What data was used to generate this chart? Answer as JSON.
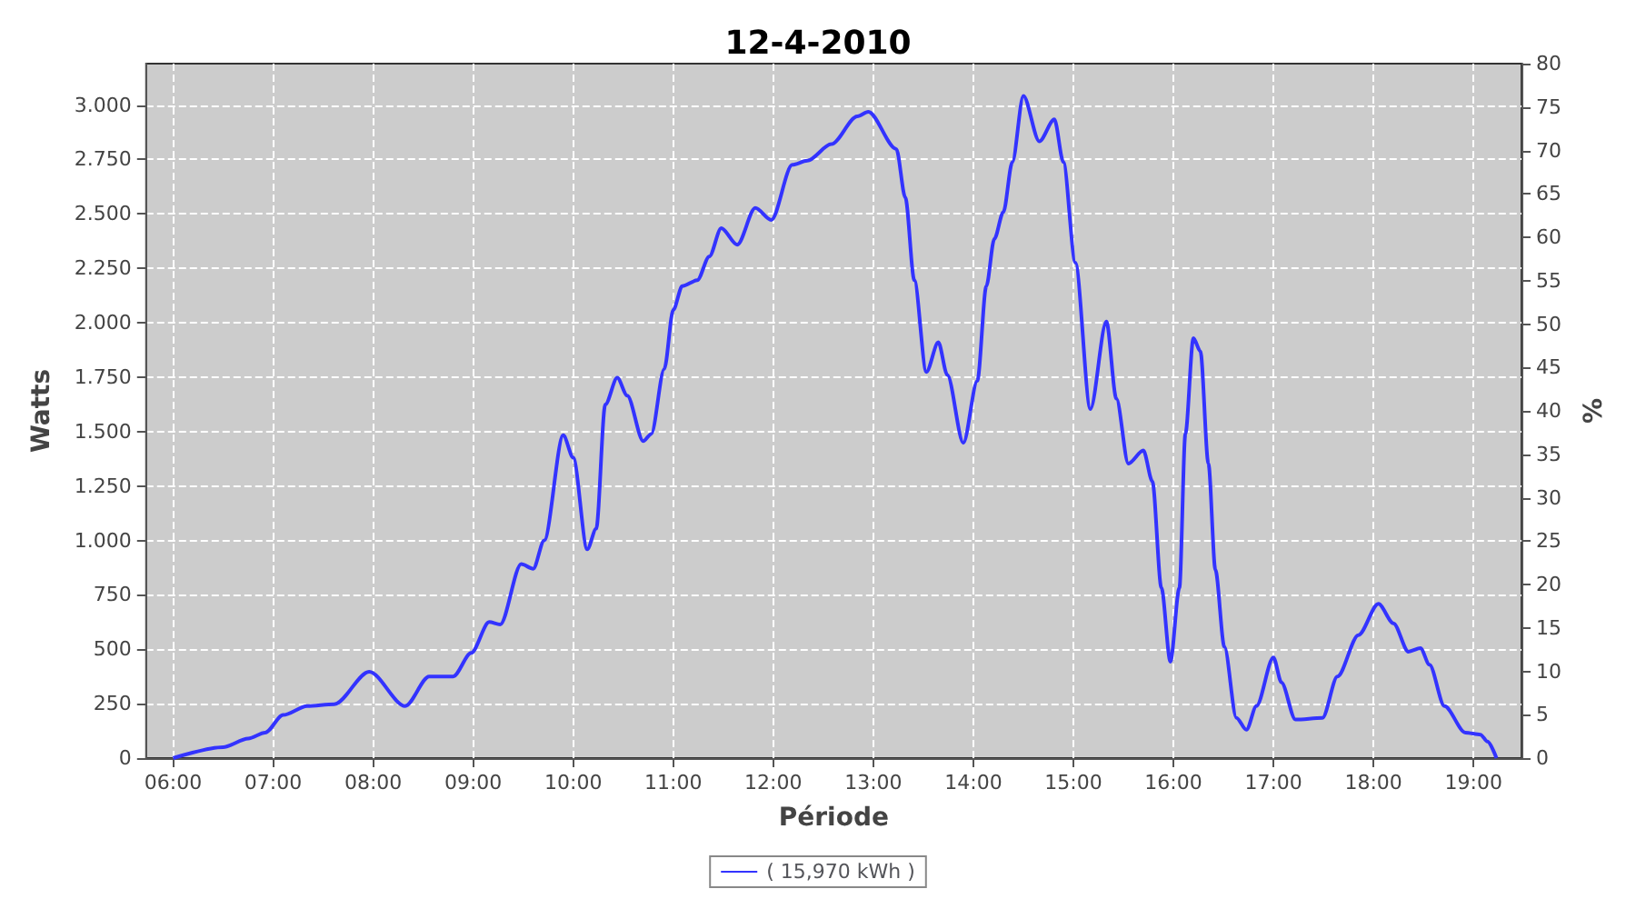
{
  "chart_data": {
    "type": "line",
    "title": "12-4-2010",
    "xlabel": "Période",
    "ylabel": "Watts",
    "y2label": "%",
    "x": [
      6.0,
      6.5,
      6.75,
      6.92,
      7.1,
      7.34,
      7.61,
      7.96,
      8.32,
      8.56,
      8.8,
      8.98,
      9.16,
      9.27,
      9.48,
      9.6,
      9.71,
      9.9,
      10.0,
      10.14,
      10.23,
      10.32,
      10.44,
      10.54,
      10.7,
      10.78,
      10.91,
      11.0,
      11.09,
      11.24,
      11.36,
      11.48,
      11.64,
      11.82,
      11.98,
      12.19,
      12.34,
      12.58,
      12.84,
      12.95,
      13.23,
      13.32,
      13.41,
      13.53,
      13.65,
      13.74,
      13.9,
      14.04,
      14.13,
      14.21,
      14.3,
      14.39,
      14.5,
      14.66,
      14.81,
      14.9,
      15.02,
      15.17,
      15.33,
      15.43,
      15.55,
      15.7,
      15.79,
      15.88,
      15.97,
      16.06,
      16.12,
      16.2,
      16.27,
      16.35,
      16.42,
      16.51,
      16.63,
      16.73,
      16.83,
      17.0,
      17.08,
      17.22,
      17.49,
      17.64,
      17.85,
      18.05,
      18.2,
      18.35,
      18.47,
      18.56,
      18.71,
      18.92,
      19.07,
      19.14,
      19.23
    ],
    "series": [
      {
        "name": "( 15,970 kWh )",
        "color": "#3333ff",
        "values": [
          0,
          50,
          90,
          117,
          198,
          239,
          247,
          397,
          239,
          375,
          375,
          483,
          625,
          614,
          891,
          870,
          1000,
          1483,
          1380,
          959,
          1054,
          1624,
          1747,
          1665,
          1456,
          1489,
          1787,
          2059,
          2168,
          2195,
          2304,
          2434,
          2358,
          2527,
          2472,
          2725,
          2744,
          2820,
          2948,
          2969,
          2798,
          2575,
          2195,
          1774,
          1910,
          1760,
          1448,
          1733,
          2168,
          2385,
          2508,
          2738,
          3042,
          2833,
          2934,
          2738,
          2276,
          1603,
          2005,
          1651,
          1353,
          1413,
          1271,
          782,
          443,
          782,
          1489,
          1929,
          1869,
          1353,
          864,
          511,
          185,
          130,
          239,
          462,
          348,
          177,
          185,
          375,
          565,
          709,
          619,
          489,
          505,
          429,
          239,
          117,
          108,
          76,
          0
        ]
      }
    ],
    "xlim": [
      5.73,
      19.48
    ],
    "xticks": [
      {
        "value": 6,
        "label": "06:00"
      },
      {
        "value": 7,
        "label": "07:00"
      },
      {
        "value": 8,
        "label": "08:00"
      },
      {
        "value": 9,
        "label": "09:00"
      },
      {
        "value": 10,
        "label": "10:00"
      },
      {
        "value": 11,
        "label": "11:00"
      },
      {
        "value": 12,
        "label": "12:00"
      },
      {
        "value": 13,
        "label": "13:00"
      },
      {
        "value": 14,
        "label": "14:00"
      },
      {
        "value": 15,
        "label": "15:00"
      },
      {
        "value": 16,
        "label": "16:00"
      },
      {
        "value": 17,
        "label": "17:00"
      },
      {
        "value": 18,
        "label": "18:00"
      },
      {
        "value": 19,
        "label": "19:00"
      }
    ],
    "ylim": [
      0,
      3190
    ],
    "yticks": [
      0,
      250,
      500,
      750,
      {
        "value": 1000,
        "label": "1.000"
      },
      {
        "value": 1250,
        "label": "1.250"
      },
      {
        "value": 1500,
        "label": "1.500"
      },
      {
        "value": 1750,
        "label": "1.750"
      },
      {
        "value": 2000,
        "label": "2.000"
      },
      {
        "value": 2250,
        "label": "2.250"
      },
      {
        "value": 2500,
        "label": "2.500"
      },
      {
        "value": 2750,
        "label": "2.750"
      },
      {
        "value": 3000,
        "label": "3.000"
      }
    ],
    "y2lim": [
      0,
      80
    ],
    "y2ticks": [
      0,
      5,
      10,
      15,
      20,
      25,
      30,
      35,
      40,
      45,
      50,
      55,
      60,
      65,
      70,
      75,
      80
    ],
    "grid": true,
    "legend": "bottom",
    "marker": "none",
    "line_style": "solid"
  }
}
